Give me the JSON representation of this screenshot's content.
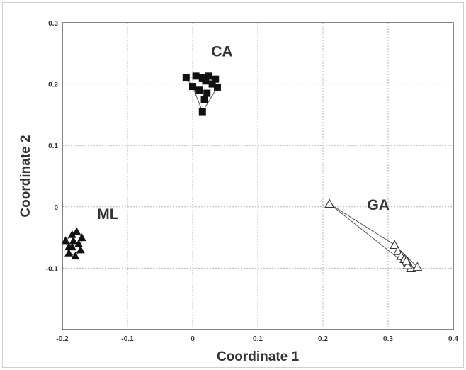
{
  "chart_data": {
    "type": "scatter",
    "xlabel": "Coordinate 1",
    "ylabel": "Coordinate 2",
    "xlim": [
      -0.2,
      0.4
    ],
    "ylim": [
      -0.2,
      0.3
    ],
    "xticks": [
      "-0.2",
      "-0.1",
      "0",
      "0.1",
      "0.2",
      "0.3",
      "0.4"
    ],
    "yticks": [
      "-0.1",
      "0",
      "0.1",
      "0.2",
      "0.3"
    ],
    "grid": true,
    "annotations": [
      {
        "text": "CA",
        "x": 0.045,
        "y": 0.245
      },
      {
        "text": "ML",
        "x": -0.13,
        "y": -0.02
      },
      {
        "text": "GA",
        "x": 0.285,
        "y": -0.005
      }
    ],
    "series": [
      {
        "marker": "filled-square",
        "color": "#111111",
        "points": [
          [
            -0.01,
            0.211
          ],
          [
            0.0,
            0.196
          ],
          [
            0.005,
            0.213
          ],
          [
            0.01,
            0.19
          ],
          [
            0.015,
            0.21
          ],
          [
            0.02,
            0.205
          ],
          [
            0.025,
            0.213
          ],
          [
            0.03,
            0.2
          ],
          [
            0.035,
            0.208
          ],
          [
            0.038,
            0.195
          ],
          [
            0.022,
            0.185
          ],
          [
            0.018,
            0.175
          ],
          [
            0.015,
            0.155
          ]
        ],
        "hull": [
          [
            -0.01,
            0.211
          ],
          [
            0.025,
            0.213
          ],
          [
            0.038,
            0.195
          ],
          [
            0.015,
            0.155
          ],
          [
            0.0,
            0.196
          ]
        ]
      },
      {
        "marker": "filled-triangle",
        "color": "#111111",
        "points": [
          [
            -0.195,
            -0.055
          ],
          [
            -0.19,
            -0.075
          ],
          [
            -0.185,
            -0.045
          ],
          [
            -0.185,
            -0.065
          ],
          [
            -0.18,
            -0.08
          ],
          [
            -0.178,
            -0.04
          ],
          [
            -0.175,
            -0.06
          ],
          [
            -0.172,
            -0.07
          ],
          [
            -0.17,
            -0.05
          ],
          [
            -0.19,
            -0.065
          ],
          [
            -0.183,
            -0.055
          ]
        ],
        "hull": [
          [
            -0.195,
            -0.055
          ],
          [
            -0.178,
            -0.04
          ],
          [
            -0.17,
            -0.05
          ],
          [
            -0.172,
            -0.07
          ],
          [
            -0.18,
            -0.08
          ],
          [
            -0.19,
            -0.075
          ]
        ]
      },
      {
        "marker": "open-triangle",
        "color": "#333333",
        "points": [
          [
            0.21,
            0.005
          ],
          [
            0.31,
            -0.062
          ],
          [
            0.315,
            -0.072
          ],
          [
            0.32,
            -0.08
          ],
          [
            0.325,
            -0.085
          ],
          [
            0.33,
            -0.09
          ],
          [
            0.335,
            -0.1
          ],
          [
            0.345,
            -0.098
          ],
          [
            0.33,
            -0.095
          ],
          [
            0.328,
            -0.088
          ]
        ],
        "hull": [
          [
            0.21,
            0.005
          ],
          [
            0.31,
            -0.062
          ],
          [
            0.345,
            -0.098
          ],
          [
            0.335,
            -0.1
          ]
        ]
      }
    ]
  }
}
